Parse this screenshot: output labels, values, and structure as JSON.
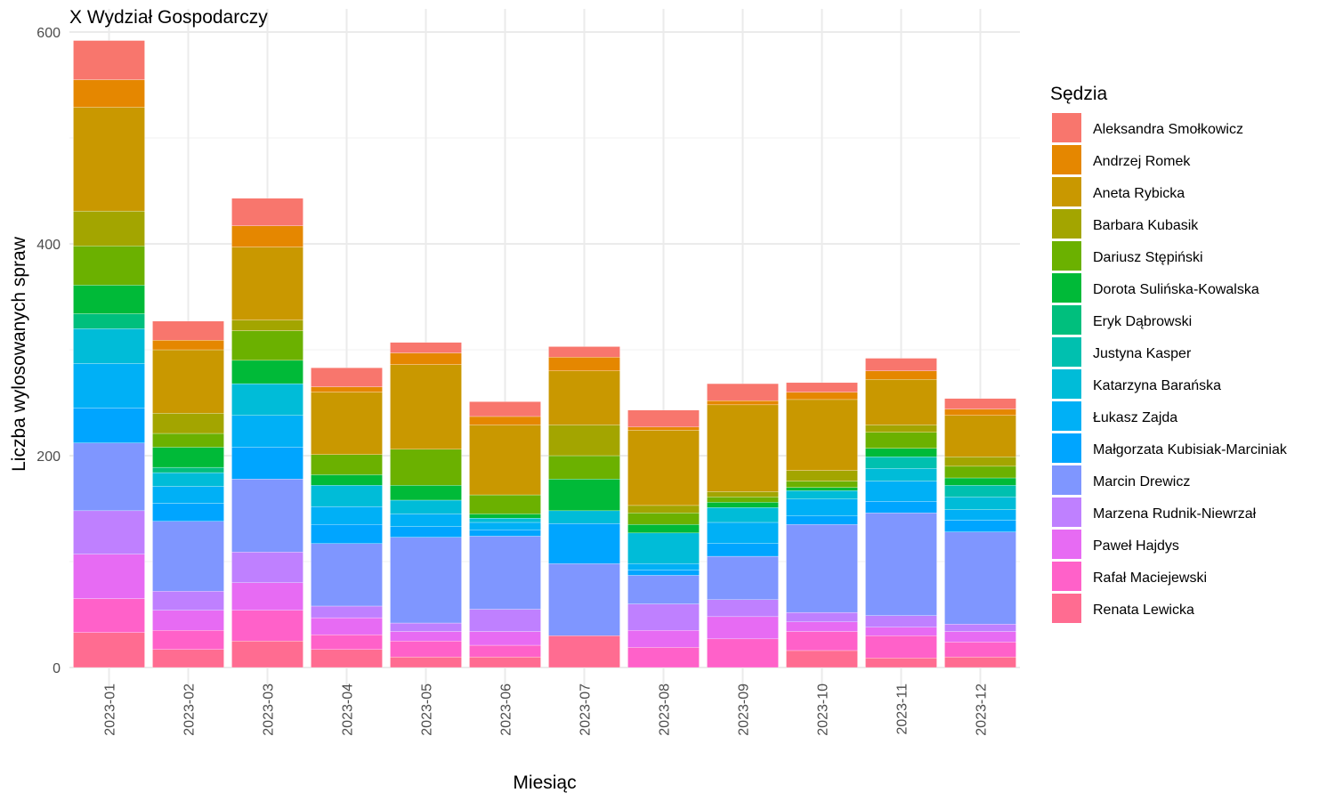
{
  "chart_data": {
    "type": "bar",
    "stacked": true,
    "title": "X Wydział Gospodarczy",
    "xlabel": "Miesiąc",
    "ylabel": "Liczba wylosowanych spraw",
    "ylim": [
      -22,
      600
    ],
    "yticks": [
      0,
      200,
      400,
      600
    ],
    "grid": true,
    "legend_title": "Sędzia",
    "legend_position": "right",
    "categories": [
      "2023-01",
      "2023-02",
      "2023-03",
      "2023-04",
      "2023-05",
      "2023-06",
      "2023-07",
      "2023-08",
      "2023-09",
      "2023-10",
      "2023-11",
      "2023-12"
    ],
    "series": [
      {
        "name": "Aleksandra Smołkowicz",
        "color": "#F8766D",
        "values": [
          37,
          18,
          26,
          18,
          10,
          14,
          10,
          16,
          16,
          9,
          12,
          10
        ]
      },
      {
        "name": "Andrzej Romek",
        "color": "#E58700",
        "values": [
          26,
          9,
          20,
          5,
          11,
          8,
          13,
          3,
          4,
          7,
          8,
          6
        ]
      },
      {
        "name": "Aneta Rybicka",
        "color": "#C99800",
        "values": [
          98,
          60,
          69,
          59,
          80,
          66,
          51,
          71,
          82,
          67,
          43,
          39
        ]
      },
      {
        "name": "Barbara Kubasik",
        "color": "#A3A500",
        "values": [
          33,
          19,
          10,
          0,
          0,
          0,
          29,
          7,
          5,
          10,
          7,
          9
        ]
      },
      {
        "name": "Dariusz Stępiński",
        "color": "#6BB100",
        "values": [
          37,
          13,
          28,
          19,
          34,
          18,
          22,
          11,
          5,
          6,
          15,
          11
        ]
      },
      {
        "name": "Dorota Sulińska-Kowalska",
        "color": "#00BA38",
        "values": [
          27,
          19,
          22,
          10,
          14,
          4,
          30,
          8,
          5,
          3,
          8,
          7
        ]
      },
      {
        "name": "Eryk Dąbrowski",
        "color": "#00BF7D",
        "values": [
          14,
          5,
          0,
          0,
          0,
          0,
          0,
          0,
          0,
          0,
          0,
          0
        ]
      },
      {
        "name": "Justyna Kasper",
        "color": "#00C0AF",
        "values": [
          0,
          0,
          0,
          0,
          0,
          0,
          0,
          0,
          0,
          0,
          11,
          11
        ]
      },
      {
        "name": "Katarzyna Barańska",
        "color": "#00BCD8",
        "values": [
          33,
          13,
          30,
          20,
          13,
          4,
          12,
          29,
          14,
          8,
          12,
          12
        ]
      },
      {
        "name": "Łukasz Zajda",
        "color": "#00B0F6",
        "values": [
          42,
          16,
          30,
          17,
          12,
          7,
          0,
          6,
          20,
          16,
          19,
          10
        ]
      },
      {
        "name": "Małgorzata Kubisiak-Marciniak",
        "color": "#00A5FF",
        "values": [
          33,
          17,
          30,
          18,
          10,
          6,
          38,
          5,
          12,
          8,
          11,
          11
        ]
      },
      {
        "name": "Marcin Drewicz",
        "color": "#7F96FF",
        "values": [
          64,
          66,
          69,
          59,
          81,
          69,
          68,
          27,
          41,
          83,
          97,
          87
        ]
      },
      {
        "name": "Marzena Rudnik-Niewrzał",
        "color": "#BF80FF",
        "values": [
          41,
          18,
          29,
          11,
          8,
          21,
          0,
          25,
          16,
          9,
          11,
          7
        ]
      },
      {
        "name": "Paweł Hajdys",
        "color": "#E76BF3",
        "values": [
          42,
          19,
          26,
          16,
          9,
          13,
          0,
          16,
          21,
          9,
          8,
          10
        ]
      },
      {
        "name": "Rafał Maciejewski",
        "color": "#FF61C9",
        "values": [
          32,
          18,
          29,
          14,
          15,
          11,
          0,
          19,
          27,
          18,
          21,
          14
        ]
      },
      {
        "name": "Renata Lewicka",
        "color": "#FF6C91",
        "values": [
          33,
          17,
          25,
          17,
          10,
          10,
          30,
          0,
          0,
          16,
          9,
          10
        ]
      }
    ]
  }
}
